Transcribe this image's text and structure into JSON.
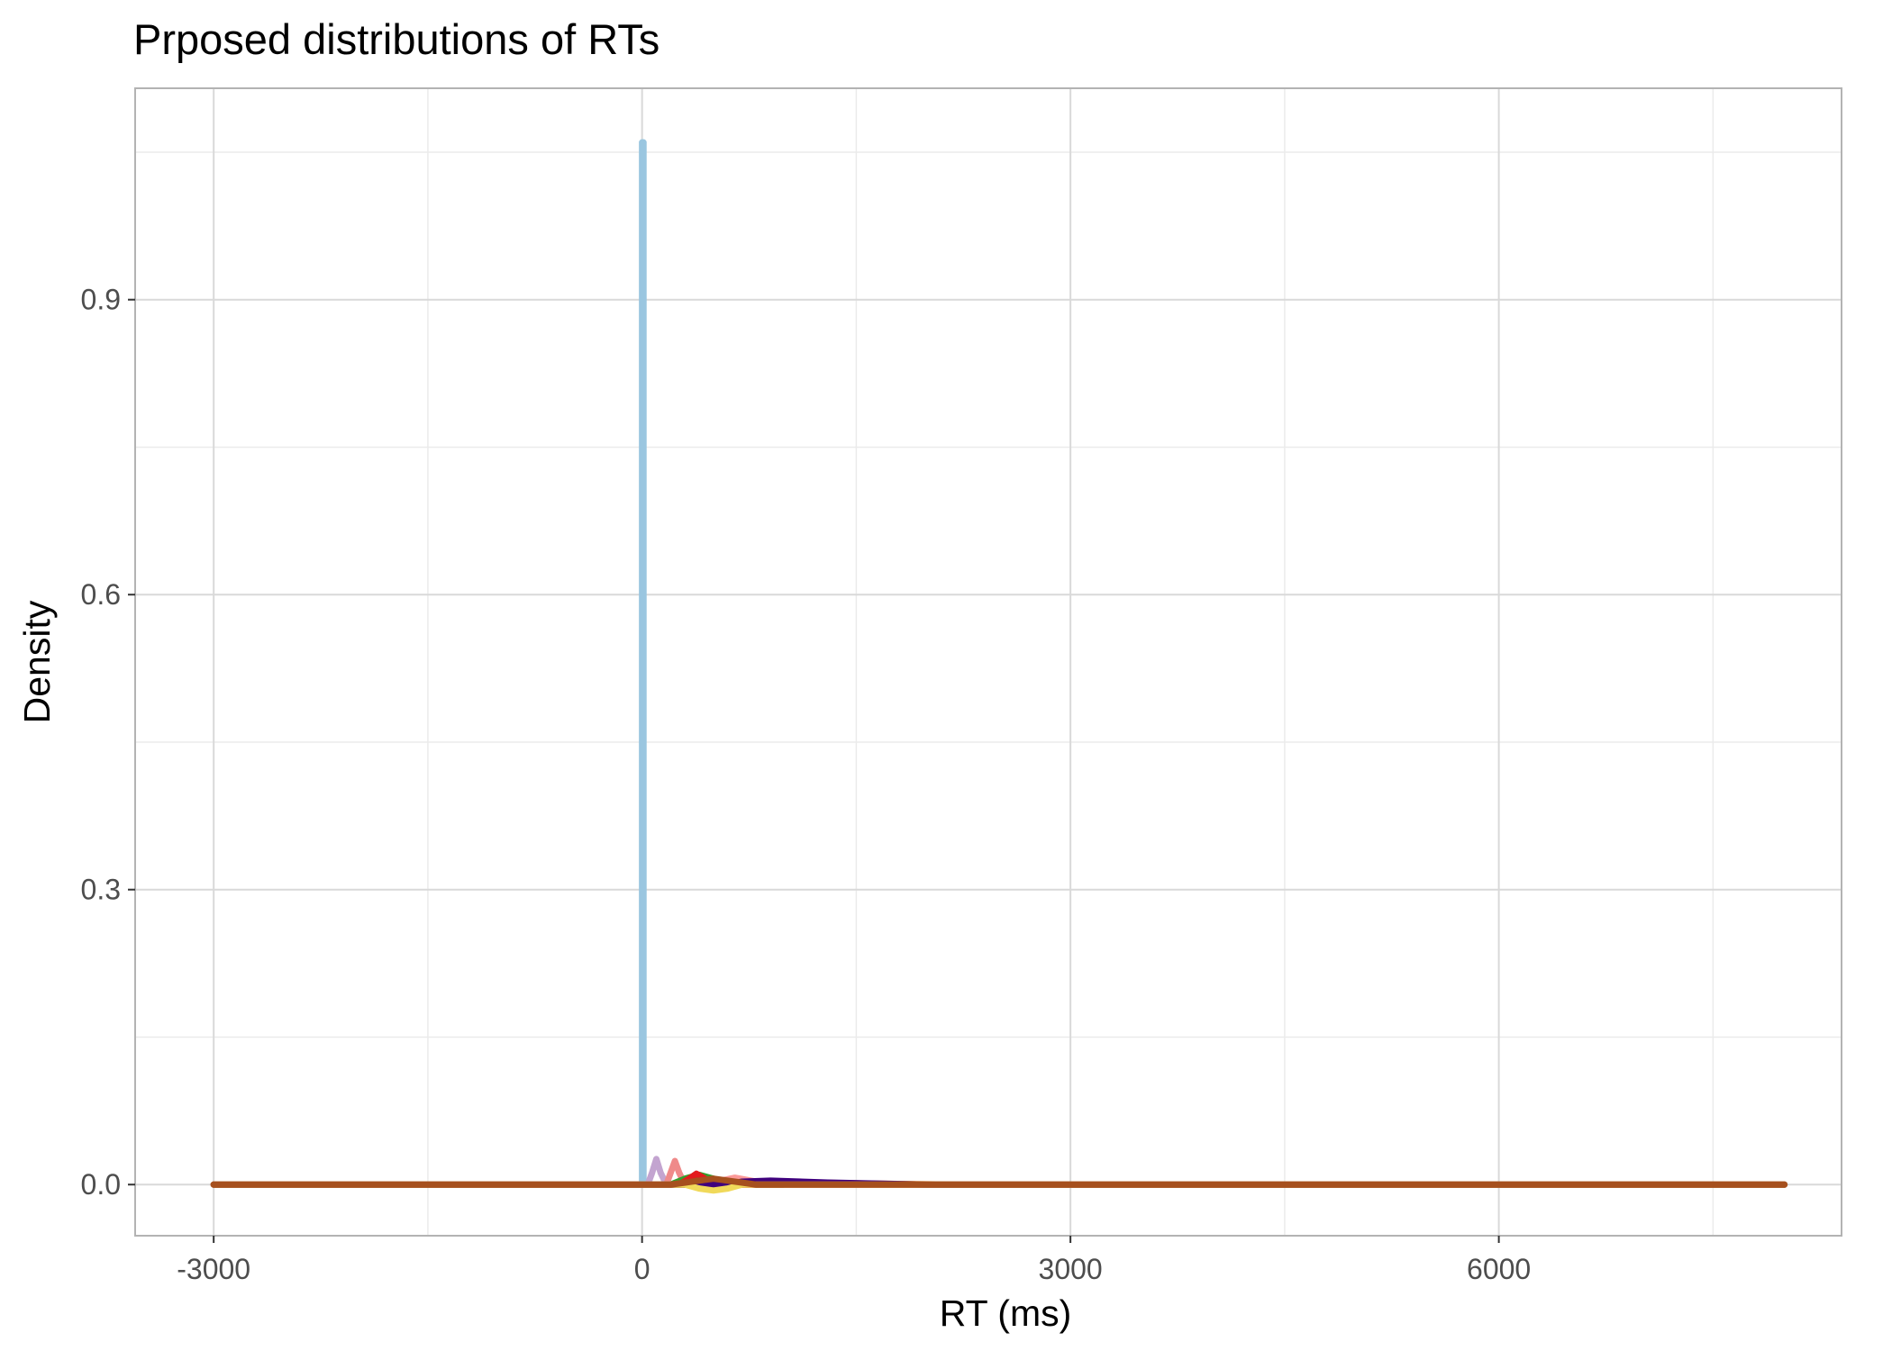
{
  "chart_data": {
    "type": "line",
    "title": "Prposed distributions of RTs",
    "xlabel": "RT (ms)",
    "ylabel": "Density",
    "xlim": [
      -3550,
      8400
    ],
    "ylim": [
      -0.052,
      1.115
    ],
    "x_ticks": [
      -3000,
      0,
      3000,
      6000
    ],
    "x_tick_labels": [
      "-3000",
      "0",
      "3000",
      "6000"
    ],
    "y_ticks": [
      0.0,
      0.3,
      0.6,
      0.9
    ],
    "y_tick_labels": [
      "0.0",
      "0.3",
      "0.6",
      "0.9"
    ],
    "grid": true,
    "legend": "none",
    "series": [
      {
        "color": "#9ac6e0",
        "points": [
          [
            -3000,
            0
          ],
          [
            0,
            0
          ],
          [
            0,
            1.06
          ],
          [
            10,
            1.06
          ],
          [
            10,
            0
          ],
          [
            8000,
            0
          ]
        ]
      },
      {
        "color": "#c3a4d0",
        "points": [
          [
            -3000,
            0
          ],
          [
            40,
            0
          ],
          [
            70,
            0.012
          ],
          [
            100,
            0.026
          ],
          [
            130,
            0.012
          ],
          [
            170,
            0
          ],
          [
            8000,
            0
          ]
        ]
      },
      {
        "color": "#ef8a8a",
        "points": [
          [
            -3000,
            0
          ],
          [
            170,
            0
          ],
          [
            200,
            0.012
          ],
          [
            230,
            0.024
          ],
          [
            260,
            0.012
          ],
          [
            300,
            0
          ],
          [
            8000,
            0
          ]
        ]
      },
      {
        "color": "#33a02c",
        "points": [
          [
            -3000,
            0
          ],
          [
            200,
            0
          ],
          [
            300,
            0.006
          ],
          [
            400,
            0.01
          ],
          [
            550,
            0.004
          ],
          [
            800,
            0
          ],
          [
            8000,
            0
          ]
        ]
      },
      {
        "color": "#e31a1c",
        "points": [
          [
            -3000,
            0
          ],
          [
            260,
            0
          ],
          [
            330,
            0.006
          ],
          [
            380,
            0.011
          ],
          [
            440,
            0.006
          ],
          [
            520,
            0
          ],
          [
            8000,
            0
          ]
        ]
      },
      {
        "color": "#fb9a99",
        "points": [
          [
            -3000,
            0
          ],
          [
            450,
            0
          ],
          [
            550,
            0.004
          ],
          [
            650,
            0.007
          ],
          [
            800,
            0.003
          ],
          [
            1000,
            0
          ],
          [
            8000,
            0
          ]
        ]
      },
      {
        "color": "#ff7f00",
        "points": [
          [
            -3000,
            0
          ],
          [
            600,
            0
          ],
          [
            900,
            0.003
          ],
          [
            1200,
            0.002
          ],
          [
            1600,
            0.001
          ],
          [
            2200,
            0
          ],
          [
            8000,
            0
          ]
        ]
      },
      {
        "color": "#3f007d",
        "points": [
          [
            -3000,
            0
          ],
          [
            600,
            0
          ],
          [
            700,
            0.003
          ],
          [
            900,
            0.004
          ],
          [
            1300,
            0.002
          ],
          [
            2000,
            0
          ],
          [
            8000,
            0
          ]
        ]
      },
      {
        "color": "#f0d95a",
        "points": [
          [
            -3000,
            0
          ],
          [
            300,
            0
          ],
          [
            400,
            -0.004
          ],
          [
            500,
            -0.006
          ],
          [
            600,
            -0.004
          ],
          [
            700,
            0
          ],
          [
            8000,
            0
          ]
        ]
      },
      {
        "color": "#a6501e",
        "points": [
          [
            -3000,
            0
          ],
          [
            200,
            0
          ],
          [
            350,
            0.003
          ],
          [
            500,
            0.006
          ],
          [
            650,
            0.003
          ],
          [
            800,
            0
          ],
          [
            8000,
            0
          ]
        ]
      }
    ]
  }
}
